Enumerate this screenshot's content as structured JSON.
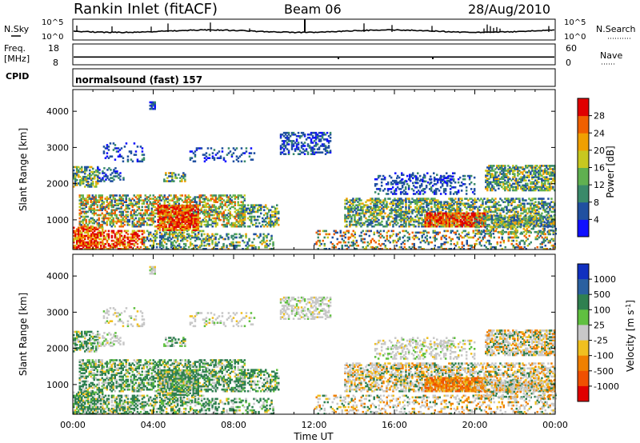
{
  "header": {
    "station": "Rankin Inlet (fitACF)",
    "beam": "Beam 06",
    "date": "28/Aug/2010"
  },
  "summary": {
    "nsky_label": "N.Sky",
    "nsearch_label": "N.Search",
    "freq_label": "Freq.",
    "freq_unit": "[MHz]",
    "nave_label": "Nave",
    "cpid_label": "CPID",
    "cpid_value": "normalsound (fast) 157",
    "nsky_ticks": [
      "10^5",
      "10^0"
    ],
    "nsearch_ticks": [
      "10^5",
      "10^0"
    ],
    "freq_ticks": [
      "18",
      "8"
    ],
    "nave_ticks": [
      "60",
      "0"
    ],
    "freq_range_mhz": [
      8,
      18
    ],
    "freq_level_mhz": 11.5,
    "nave_range": [
      0,
      60
    ]
  },
  "chart_data": [
    {
      "type": "heatmap",
      "panel": "power",
      "xlabel": "Time UT",
      "ylabel": "Slant Range [km]",
      "xlim": [
        "00:00",
        "24:00"
      ],
      "ylim": [
        180,
        4600
      ],
      "y_ticks": [
        "1000",
        "2000",
        "3000",
        "4000"
      ],
      "x_ticks": [
        "00:00",
        "04:00",
        "08:00",
        "12:00",
        "16:00",
        "20:00",
        "00:00"
      ],
      "colorbar": {
        "label": "Power [dB]",
        "ticks": [
          "4",
          "8",
          "12",
          "16",
          "20",
          "24",
          "28"
        ],
        "range": [
          0,
          30
        ],
        "colors": [
          "#1010ff",
          "#2050a0",
          "#3a8a6a",
          "#60b050",
          "#c8c820",
          "#f0a000",
          "#f06000",
          "#e00000"
        ]
      }
    },
    {
      "type": "heatmap",
      "panel": "velocity",
      "xlabel": "Time UT",
      "ylabel": "Slant Range [km]",
      "xlim": [
        "00:00",
        "24:00"
      ],
      "ylim": [
        180,
        4600
      ],
      "y_ticks": [
        "1000",
        "2000",
        "3000",
        "4000"
      ],
      "x_ticks": [
        "00:00",
        "04:00",
        "08:00",
        "12:00",
        "16:00",
        "20:00",
        "00:00"
      ],
      "colorbar": {
        "label": "Velocity [m s",
        "label_sup": "-1",
        "label_end": "]",
        "ticks": [
          "1000",
          "500",
          "100",
          "25",
          "-25",
          "-100",
          "-500",
          "-1000"
        ],
        "colors": [
          "#1030c0",
          "#2a60a0",
          "#2f8050",
          "#60c040",
          "#c8c8c8",
          "#f0c020",
          "#f08000",
          "#f05000",
          "#e00000"
        ]
      }
    }
  ]
}
